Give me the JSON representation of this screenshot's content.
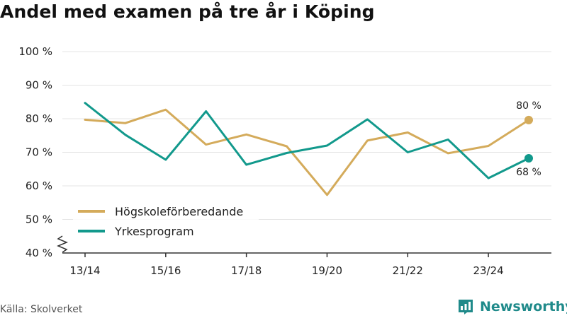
{
  "title": "Andel med examen på tre år i Köping",
  "source": "Källa: Skolverket",
  "brand": "Newsworthy",
  "colors": {
    "series1": "#d4ab5b",
    "series2": "#12998c",
    "grid": "#e4e4e4",
    "axis": "#333333",
    "text": "#222222",
    "brand": "#1f8a8a"
  },
  "chart_data": {
    "type": "line",
    "title": "Andel med examen på tre år i Köping",
    "x": [
      "13/14",
      "14/15",
      "15/16",
      "16/17",
      "17/18",
      "18/19",
      "19/20",
      "20/21",
      "21/22",
      "22/23",
      "23/24",
      "24/25"
    ],
    "x_tick_labels": [
      "13/14",
      "15/16",
      "17/18",
      "19/20",
      "21/22",
      "23/24"
    ],
    "y_tick_labels": [
      "40 %",
      "50 %",
      "60 %",
      "70 %",
      "80 %",
      "90 %",
      "100 %"
    ],
    "ylim": [
      40,
      100
    ],
    "y_axis_break": true,
    "grid": true,
    "legend_position": "bottom-left",
    "series": [
      {
        "name": "Högskoleförberedande",
        "values": [
          79.7,
          78.7,
          82.7,
          72.3,
          75.3,
          71.8,
          57.3,
          73.5,
          75.9,
          69.7,
          71.9,
          79.6
        ],
        "end_label": "80 %"
      },
      {
        "name": "Yrkesprogram",
        "values": [
          84.7,
          75.2,
          67.8,
          82.2,
          66.3,
          69.8,
          72.0,
          79.8,
          70.0,
          73.8,
          62.3,
          68.2
        ],
        "end_label": "68 %"
      }
    ]
  }
}
